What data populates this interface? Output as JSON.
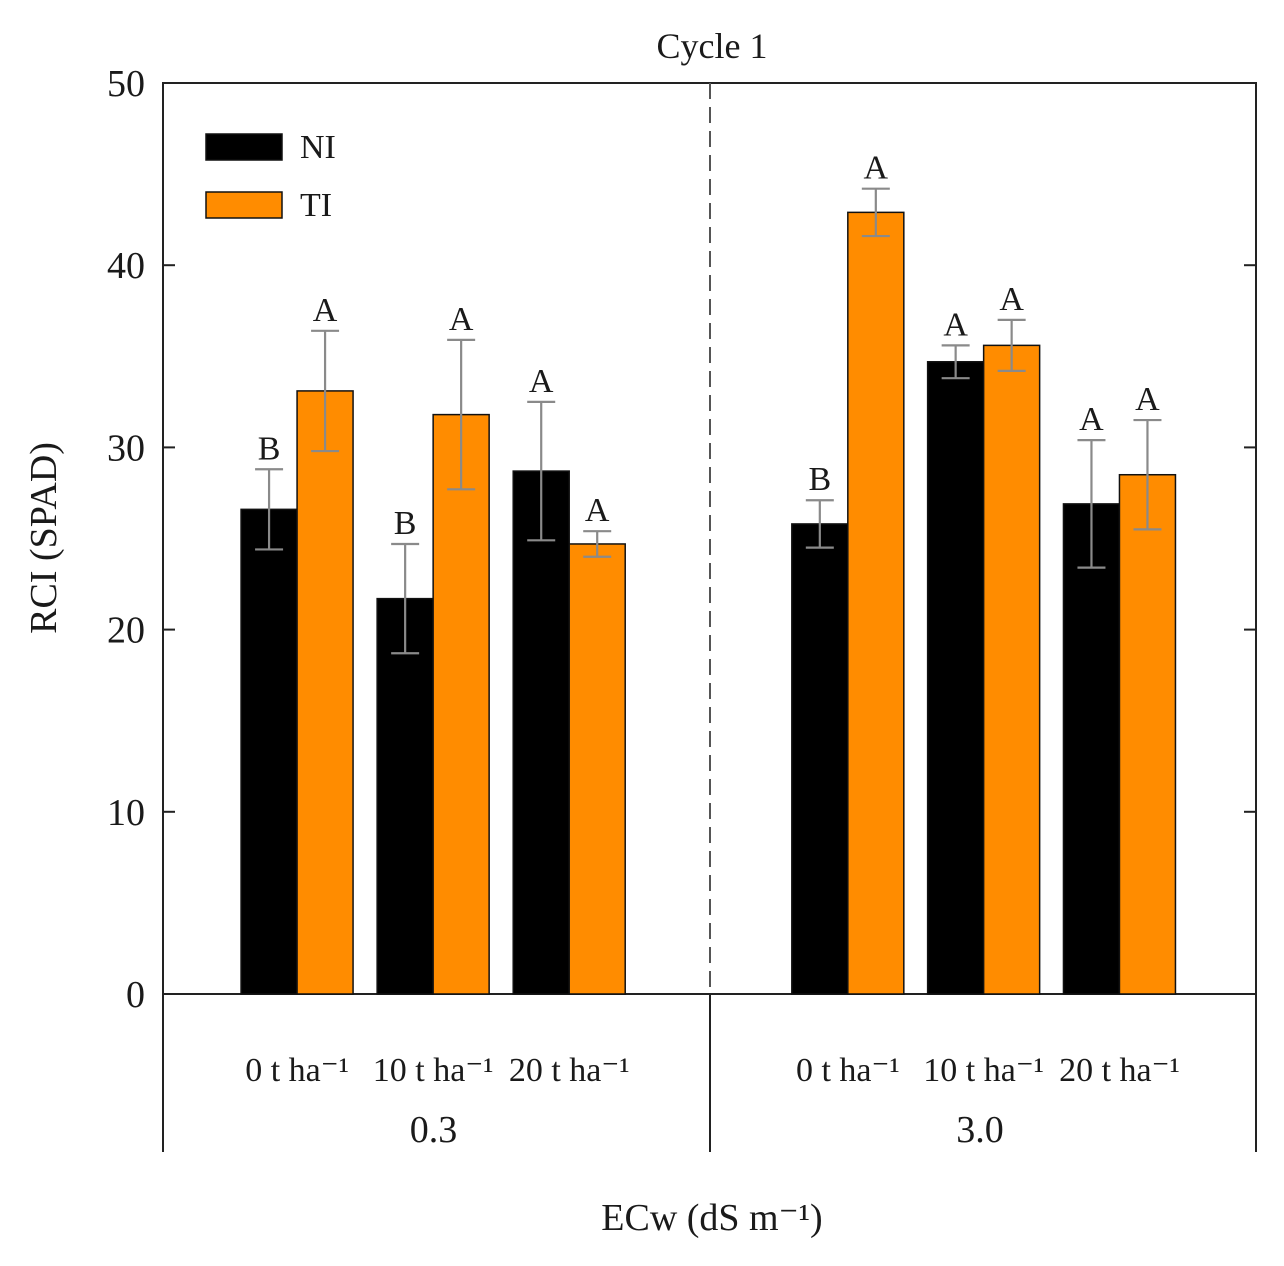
{
  "chart_data": {
    "type": "bar",
    "title": "Cycle 1",
    "ylabel": "RCI (SPAD)",
    "xlabel": "ECw (dS m⁻¹)",
    "ylim": [
      0,
      50
    ],
    "yticks": [
      "0",
      "10",
      "20",
      "30",
      "40",
      "50"
    ],
    "groups": [
      {
        "label": "0.3",
        "categories": [
          "0 t ha⁻¹",
          "10 t ha⁻¹",
          "20 t ha⁻¹"
        ]
      },
      {
        "label": "3.0",
        "categories": [
          "0 t ha⁻¹",
          "10 t ha⁻¹",
          "20 t ha⁻¹"
        ]
      }
    ],
    "series": [
      {
        "name": "NI",
        "color": "#000000",
        "values": [
          26.6,
          21.7,
          28.7,
          25.8,
          34.7,
          26.9
        ],
        "errors": [
          2.2,
          3.0,
          3.8,
          1.3,
          0.9,
          3.5
        ],
        "letters": [
          "B",
          "B",
          "A",
          "B",
          "A",
          "A"
        ]
      },
      {
        "name": "TI",
        "color": "#ff8c00",
        "values": [
          33.1,
          31.8,
          24.7,
          42.9,
          35.6,
          28.5
        ],
        "errors": [
          3.3,
          4.1,
          0.7,
          1.3,
          1.4,
          3.0
        ],
        "letters": [
          "A",
          "A",
          "A",
          "A",
          "A",
          "A"
        ]
      }
    ],
    "legend_position": "top-left",
    "grid": false,
    "group_divider": "dashed vertical line between ECw levels"
  }
}
